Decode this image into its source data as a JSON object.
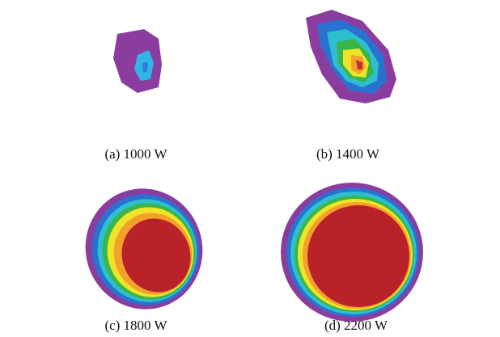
{
  "panels": [
    {
      "caption": "(a) 1000 W"
    },
    {
      "caption": "(b) 1400 W"
    },
    {
      "caption": "(c) 1800 W"
    },
    {
      "caption": "(d) 2200 W"
    }
  ]
}
